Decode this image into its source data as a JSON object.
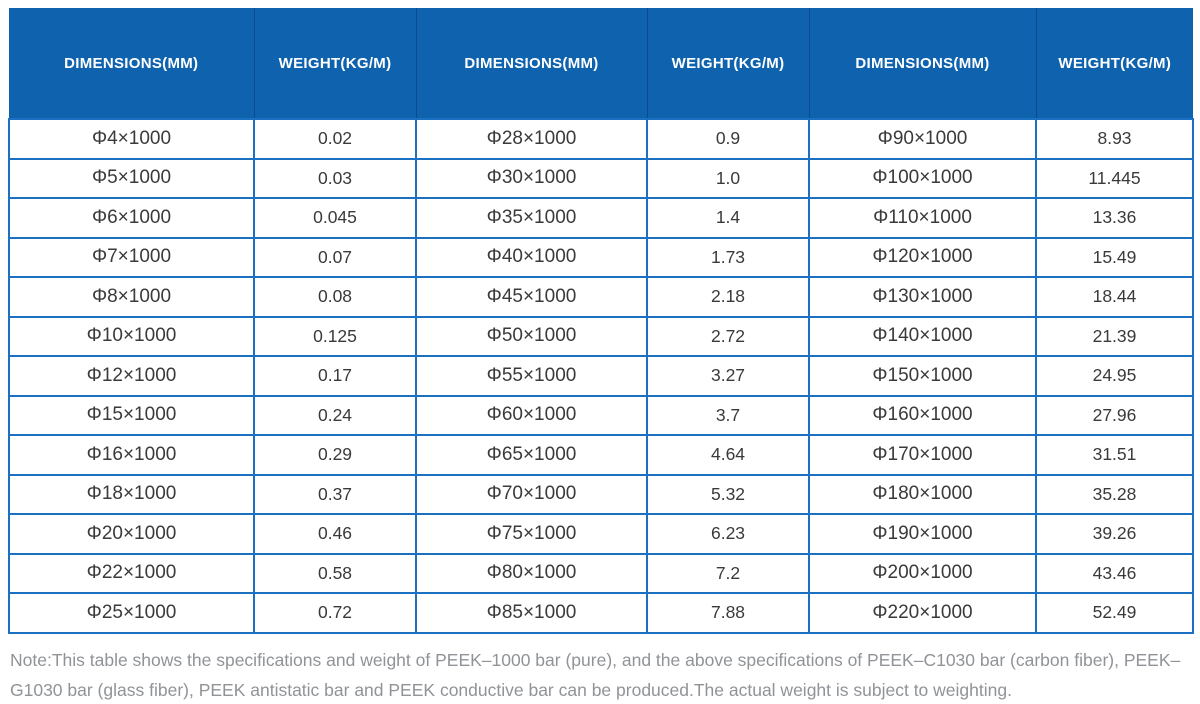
{
  "table": {
    "headers": [
      "DIMENSIONS(MM)",
      "WEIGHT(KG/M)",
      "DIMENSIONS(MM)",
      "WEIGHT(KG/M)",
      "DIMENSIONS(MM)",
      "WEIGHT(KG/M)"
    ],
    "rows": [
      [
        "Φ4×1000",
        "0.02",
        "Φ28×1000",
        "0.9",
        "Φ90×1000",
        "8.93"
      ],
      [
        "Φ5×1000",
        "0.03",
        "Φ30×1000",
        "1.0",
        "Φ100×1000",
        "11.445"
      ],
      [
        "Φ6×1000",
        "0.045",
        "Φ35×1000",
        "1.4",
        "Φ110×1000",
        "13.36"
      ],
      [
        "Φ7×1000",
        "0.07",
        "Φ40×1000",
        "1.73",
        "Φ120×1000",
        "15.49"
      ],
      [
        "Φ8×1000",
        "0.08",
        "Φ45×1000",
        "2.18",
        "Φ130×1000",
        "18.44"
      ],
      [
        "Φ10×1000",
        "0.125",
        "Φ50×1000",
        "2.72",
        "Φ140×1000",
        "21.39"
      ],
      [
        "Φ12×1000",
        "0.17",
        "Φ55×1000",
        "3.27",
        "Φ150×1000",
        "24.95"
      ],
      [
        "Φ15×1000",
        "0.24",
        "Φ60×1000",
        "3.7",
        "Φ160×1000",
        "27.96"
      ],
      [
        "Φ16×1000",
        "0.29",
        "Φ65×1000",
        "4.64",
        "Φ170×1000",
        "31.51"
      ],
      [
        "Φ18×1000",
        "0.37",
        "Φ70×1000",
        "5.32",
        "Φ180×1000",
        "35.28"
      ],
      [
        "Φ20×1000",
        "0.46",
        "Φ75×1000",
        "6.23",
        "Φ190×1000",
        "39.26"
      ],
      [
        "Φ22×1000",
        "0.58",
        "Φ80×1000",
        "7.2",
        "Φ200×1000",
        "43.46"
      ],
      [
        "Φ25×1000",
        "0.72",
        "Φ85×1000",
        "7.88",
        "Φ220×1000",
        "52.49"
      ]
    ]
  },
  "note": "Note:This table shows the specifications and weight of PEEK–1000 bar (pure), and the above specifications of PEEK–C1030 bar (carbon fiber), PEEK–G1030 bar (glass fiber), PEEK antistatic bar and PEEK conductive bar can be produced.The actual weight is subject to weighting.",
  "colors": {
    "header_bg": "#0e62ae",
    "header_separator": "#0a4a8f",
    "grid_border": "#1c70c2",
    "cell_text": "#3a3a3a",
    "note_text": "#909397"
  }
}
